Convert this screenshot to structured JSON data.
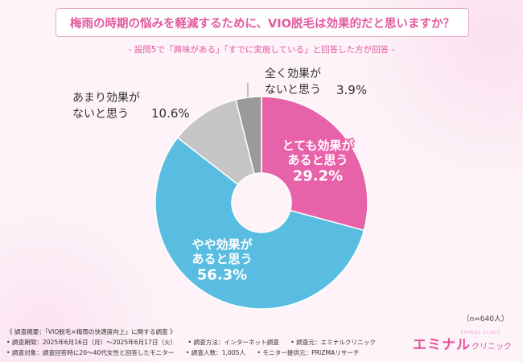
{
  "title": "梅雨の時期の悩みを軽減するために、VIO脱毛は効果的だと思いますか？",
  "subtitle": "- 設問5で「興味がある」「すでに実施している」と回答した方が回答 -",
  "sample_size": "（n=640人）",
  "footer": {
    "line1": "《 調査概要：「VIO脱毛×梅雨の快適度向上」に関する調査 》",
    "line2": [
      "• 調査期間：2025年6月16日（月）～2025年6月17日（火）",
      "• 調査方法：インターネット調査",
      "• 調査元：エミナルクリニック"
    ],
    "line3": [
      "• 調査対象：調査回答時に20～40代女性と回答したモニター",
      "• 調査人数：1,005人",
      "• モニター提供元：PRIZMAリサーチ"
    ]
  },
  "logo": {
    "main": "エミナル",
    "sub": "クリニック",
    "tagline": "EMINAL CLINIC"
  },
  "chart_data": {
    "type": "pie",
    "title": "梅雨の時期の悩みを軽減するために、VIO脱毛は効果的だと思いますか？",
    "unit": "%",
    "slices": [
      {
        "label_lines": [
          "とても効果が",
          "あると思う"
        ],
        "value": 29.2,
        "value_text": "29.2%",
        "color": "#e862a9"
      },
      {
        "label_lines": [
          "やや効果が",
          "あると思う"
        ],
        "value": 56.3,
        "value_text": "56.3%",
        "color": "#58bde0"
      },
      {
        "label_lines": [
          "あまり効果が",
          "ないと思う"
        ],
        "value": 10.6,
        "value_text": "10.6%",
        "color": "#c5c5c5"
      },
      {
        "label_lines": [
          "全く効果が",
          "ないと思う"
        ],
        "value": 3.9,
        "value_text": "3.9%",
        "color": "#9a9a9a"
      }
    ]
  }
}
